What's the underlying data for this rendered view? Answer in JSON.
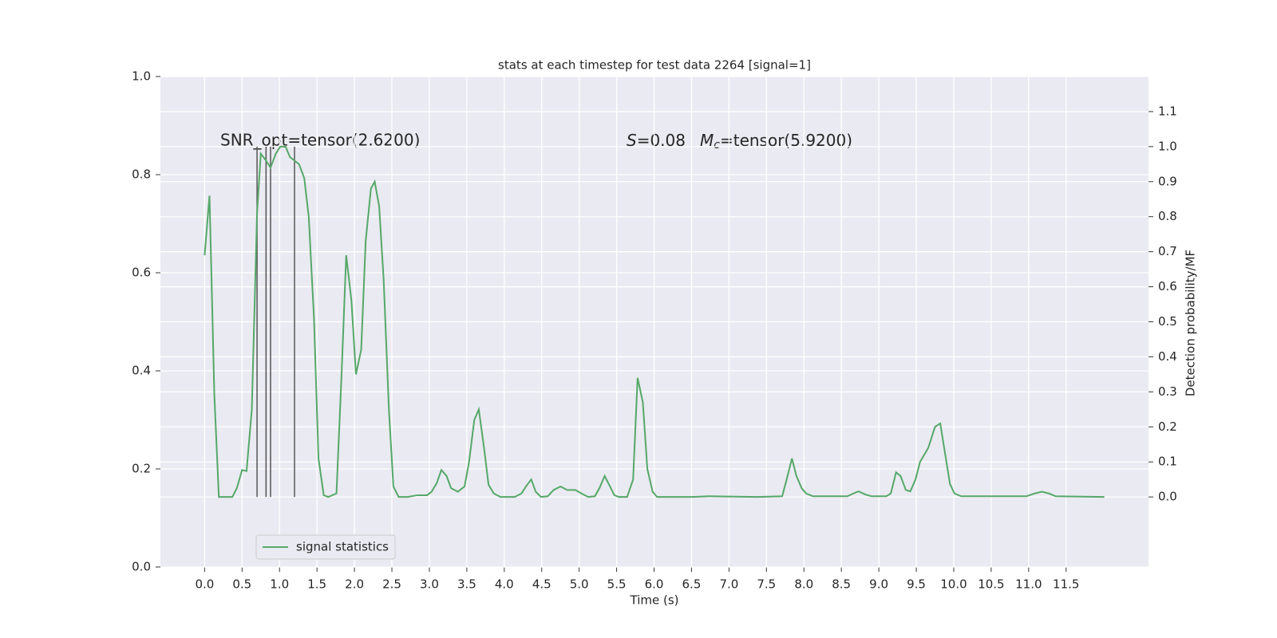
{
  "chart_data": {
    "type": "line",
    "title": "stats at each timestep for test data 2264 [signal=1]",
    "xlabel": "Time (s)",
    "y2label": "Detection probability/MF",
    "annotations": {
      "snr": "SNR_opt=tensor(2.6200)",
      "s_symbol": "S",
      "s_value": "=0.08",
      "m_symbol": "M",
      "m_sub": "c",
      "m_value": "=tensor(5.9200)"
    },
    "xlim": [
      -0.59,
      12.6
    ],
    "xticks": [
      {
        "value": 0,
        "label": "0.0"
      },
      {
        "value": 0.5,
        "label": "0.5"
      },
      {
        "value": 1,
        "label": "1.0"
      },
      {
        "value": 1.5,
        "label": "1.5"
      },
      {
        "value": 2,
        "label": "2.0"
      },
      {
        "value": 2.5,
        "label": "2.5"
      },
      {
        "value": 3,
        "label": "3.0"
      },
      {
        "value": 3.5,
        "label": "3.5"
      },
      {
        "value": 4,
        "label": "4.0"
      },
      {
        "value": 4.5,
        "label": "4.5"
      },
      {
        "value": 5,
        "label": "5.0"
      },
      {
        "value": 5.5,
        "label": "5.5"
      },
      {
        "value": 6,
        "label": "6.0"
      },
      {
        "value": 6.5,
        "label": "6.5"
      },
      {
        "value": 7,
        "label": "7.0"
      },
      {
        "value": 7.5,
        "label": "7.5"
      },
      {
        "value": 8,
        "label": "8.0"
      },
      {
        "value": 8.5,
        "label": "8.5"
      },
      {
        "value": 9,
        "label": "9.0"
      },
      {
        "value": 9.5,
        "label": "9.5"
      },
      {
        "value": 10,
        "label": "10.0"
      },
      {
        "value": 10.5,
        "label": "10.5"
      },
      {
        "value": 11,
        "label": "11.0"
      },
      {
        "value": 11.5,
        "label": "11.5"
      }
    ],
    "ylim": [
      0,
      1
    ],
    "yticks": [
      {
        "value": 0,
        "label": "0.0"
      },
      {
        "value": 0.2,
        "label": "0.2"
      },
      {
        "value": 0.4,
        "label": "0.4"
      },
      {
        "value": 0.6,
        "label": "0.6"
      },
      {
        "value": 0.8,
        "label": "0.8"
      },
      {
        "value": 1,
        "label": "1.0"
      }
    ],
    "y2lim": [
      -0.2,
      1.2
    ],
    "y2ticks": [
      {
        "value": 0,
        "label": "0.0"
      },
      {
        "value": 0.1,
        "label": "0.1"
      },
      {
        "value": 0.2,
        "label": "0.2"
      },
      {
        "value": 0.3,
        "label": "0.3"
      },
      {
        "value": 0.4,
        "label": "0.4"
      },
      {
        "value": 0.5,
        "label": "0.5"
      },
      {
        "value": 0.6,
        "label": "0.6"
      },
      {
        "value": 0.7,
        "label": "0.7"
      },
      {
        "value": 0.8,
        "label": "0.8"
      },
      {
        "value": 0.9,
        "label": "0.9"
      },
      {
        "value": 1,
        "label": "1.0"
      },
      {
        "value": 1.1,
        "label": "1.1"
      }
    ],
    "grid": true,
    "legend_loc": "lower left",
    "series": [
      {
        "name": "signal statistics",
        "color": "#55a868",
        "axis": "y2",
        "x": [
          0.0,
          0.065,
          0.13,
          0.19,
          0.37,
          0.43,
          0.5,
          0.56,
          0.63,
          0.7,
          0.75,
          0.82,
          0.88,
          0.95,
          1.01,
          1.08,
          1.14,
          1.26,
          1.33,
          1.39,
          1.46,
          1.52,
          1.59,
          1.65,
          1.76,
          1.83,
          1.89,
          1.96,
          2.02,
          2.09,
          2.15,
          2.22,
          2.27,
          2.33,
          2.39,
          2.46,
          2.52,
          2.59,
          2.71,
          2.84,
          2.97,
          3.03,
          3.1,
          3.16,
          3.23,
          3.29,
          3.38,
          3.47,
          3.53,
          3.6,
          3.66,
          3.73,
          3.79,
          3.86,
          3.95,
          4.14,
          4.23,
          4.29,
          4.36,
          4.42,
          4.49,
          4.58,
          4.66,
          4.75,
          4.84,
          4.95,
          5.03,
          5.12,
          5.21,
          5.27,
          5.34,
          5.4,
          5.47,
          5.53,
          5.64,
          5.72,
          5.78,
          5.85,
          5.91,
          5.98,
          6.04,
          6.51,
          6.73,
          7.38,
          7.71,
          7.77,
          7.84,
          7.9,
          7.97,
          8.03,
          8.12,
          8.58,
          8.66,
          8.73,
          8.82,
          8.9,
          9.1,
          9.16,
          9.23,
          9.29,
          9.36,
          9.42,
          9.49,
          9.55,
          9.66,
          9.75,
          9.82,
          9.88,
          9.95,
          10.01,
          10.1,
          10.54,
          10.97,
          11.08,
          11.18,
          11.27,
          11.36,
          12.01
        ],
        "values": [
          0.69,
          0.86,
          0.29,
          0.0,
          0.0,
          0.025,
          0.077,
          0.074,
          0.25,
          0.81,
          0.98,
          0.96,
          0.94,
          0.98,
          1.0,
          1.0,
          0.97,
          0.95,
          0.91,
          0.8,
          0.51,
          0.11,
          0.005,
          0.0,
          0.01,
          0.36,
          0.69,
          0.56,
          0.35,
          0.42,
          0.73,
          0.88,
          0.9,
          0.83,
          0.62,
          0.25,
          0.03,
          0.0,
          0.0,
          0.005,
          0.005,
          0.015,
          0.04,
          0.077,
          0.06,
          0.025,
          0.015,
          0.03,
          0.1,
          0.22,
          0.25,
          0.14,
          0.035,
          0.01,
          0.0,
          0.0,
          0.01,
          0.03,
          0.05,
          0.015,
          0.0,
          0.002,
          0.02,
          0.03,
          0.02,
          0.02,
          0.01,
          0.0,
          0.002,
          0.025,
          0.06,
          0.035,
          0.005,
          0.0,
          0.0,
          0.05,
          0.34,
          0.27,
          0.08,
          0.015,
          0.0,
          0.0,
          0.002,
          0.0,
          0.002,
          0.05,
          0.11,
          0.06,
          0.025,
          0.01,
          0.002,
          0.002,
          0.01,
          0.016,
          0.007,
          0.002,
          0.002,
          0.01,
          0.07,
          0.06,
          0.02,
          0.016,
          0.05,
          0.1,
          0.14,
          0.2,
          0.21,
          0.13,
          0.037,
          0.01,
          0.002,
          0.002,
          0.002,
          0.01,
          0.015,
          0.01,
          0.002,
          0.0
        ]
      }
    ],
    "vlines": {
      "x": [
        0.7,
        0.82,
        0.88,
        1.2
      ],
      "ymin": 0,
      "ymax": 1.0,
      "color": "#555555"
    }
  }
}
